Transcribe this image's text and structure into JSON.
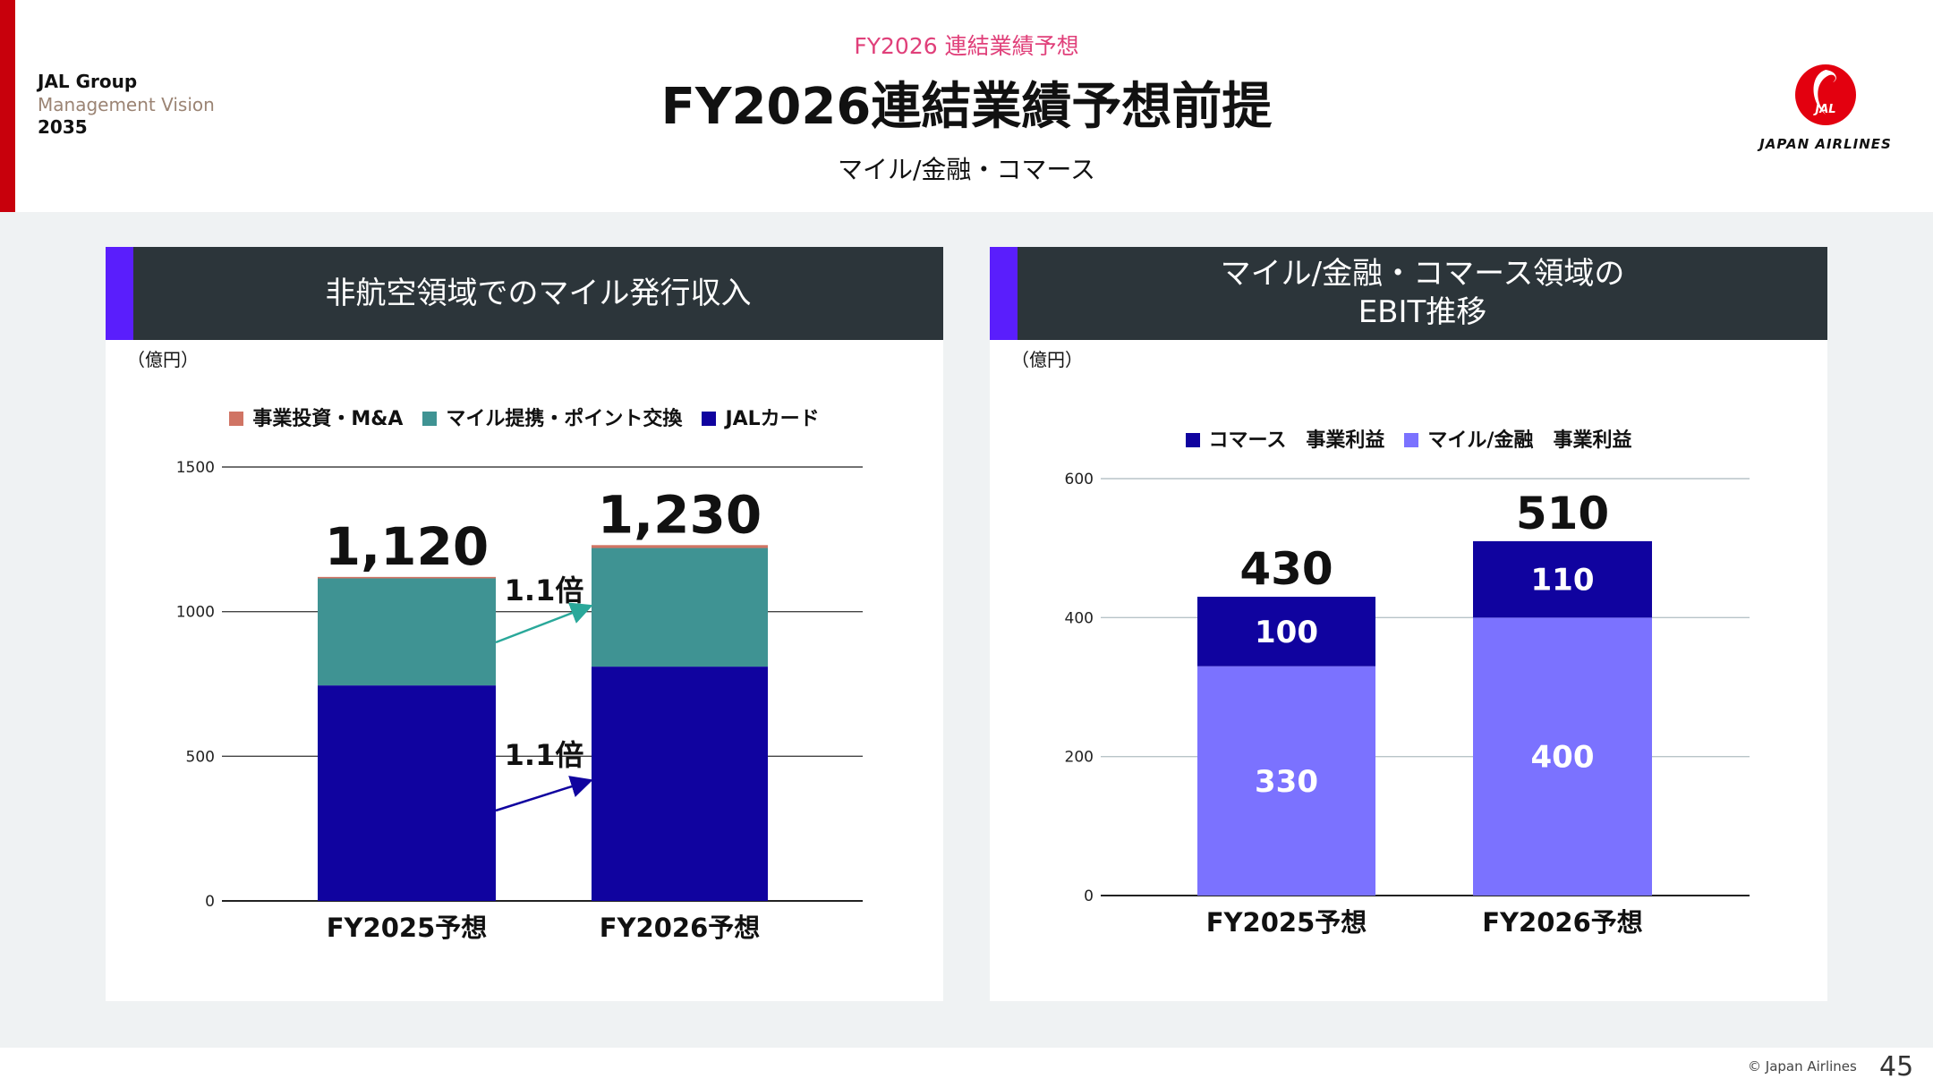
{
  "header": {
    "brand": [
      "JAL Group",
      "Management Vision",
      "2035"
    ],
    "subtitle": "FY2026 連結業績予想",
    "title": "FY2026連結業績予想前提",
    "section": "マイル/金融・コマース",
    "logo_text": "JAPAN AIRLINES",
    "logo_mark": "JAL"
  },
  "footer": {
    "copyright": "© Japan Airlines",
    "page": "45"
  },
  "colors": {
    "accent": "#5a1efc",
    "brand_red": "#c8000c",
    "ma": "#d07464",
    "mile": "#3f9393",
    "card": "#10039f",
    "commerce": "#10039f",
    "milefin": "#7b72ff"
  },
  "chart_data": [
    {
      "type": "bar",
      "stacked": true,
      "title": "非航空領域でのマイル発行収入",
      "unit": "（億円）",
      "categories": [
        "FY2025予想",
        "FY2026予想"
      ],
      "series": [
        {
          "name": "JALカード",
          "values": [
            745,
            810
          ],
          "color": "#10039f"
        },
        {
          "name": "マイル提携・ポイント交換",
          "values": [
            370,
            410
          ],
          "color": "#3f9393"
        },
        {
          "name": "事業投資・M&A",
          "values": [
            5,
            10
          ],
          "color": "#d07464"
        }
      ],
      "legend_order": [
        "事業投資・M&A",
        "マイル提携・ポイント交換",
        "JALカード"
      ],
      "totals": [
        "1,120",
        "1,230"
      ],
      "annotations": [
        {
          "text": "1.1倍",
          "series": "マイル提携・ポイント交換"
        },
        {
          "text": "1.1倍",
          "series": "JALカード"
        }
      ],
      "yticks": [
        0,
        500,
        1000,
        1500
      ],
      "ylim": [
        0,
        1500
      ]
    },
    {
      "type": "bar",
      "stacked": true,
      "title": "マイル/金融・コマース領域の\nEBIT推移",
      "unit": "（億円）",
      "categories": [
        "FY2025予想",
        "FY2026予想"
      ],
      "series": [
        {
          "name": "マイル/金融　事業利益",
          "values": [
            330,
            400
          ],
          "color": "#7b72ff"
        },
        {
          "name": "コマース　事業利益",
          "values": [
            100,
            110
          ],
          "color": "#10039f"
        }
      ],
      "legend_order": [
        "コマース　事業利益",
        "マイル/金融　事業利益"
      ],
      "totals": [
        "430",
        "510"
      ],
      "yticks": [
        0,
        200,
        400,
        600
      ],
      "ylim": [
        0,
        600
      ]
    }
  ]
}
